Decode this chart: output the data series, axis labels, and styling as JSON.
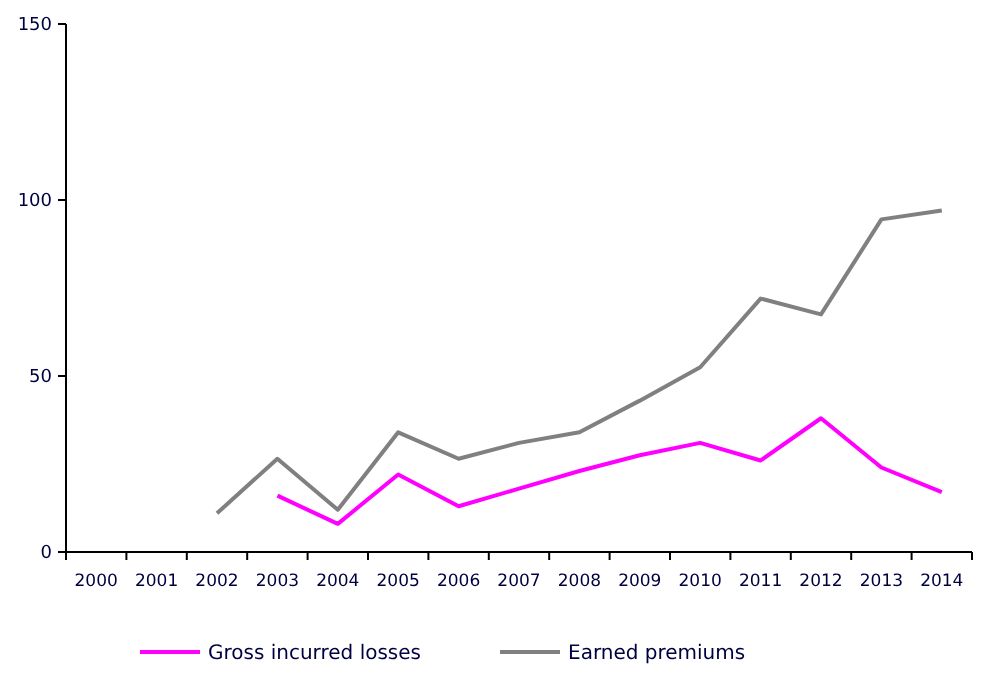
{
  "chart_data": {
    "type": "line",
    "categories": [
      "2000",
      "2001",
      "2002",
      "2003",
      "2004",
      "2005",
      "2006",
      "2007",
      "2008",
      "2009",
      "2010",
      "2011",
      "2012",
      "2013",
      "2014"
    ],
    "series": [
      {
        "name": "Gross incurred losses",
        "color": "#ff00ff",
        "values": [
          null,
          null,
          null,
          16,
          8,
          22,
          13,
          18,
          23,
          27.5,
          31,
          26,
          38,
          24,
          17
        ]
      },
      {
        "name": "Earned premiums",
        "color": "#808080",
        "values": [
          null,
          null,
          11,
          26.5,
          12,
          34,
          26.5,
          31,
          34,
          43,
          52.5,
          72,
          67.5,
          94.5,
          97
        ]
      }
    ],
    "ylim": [
      0,
      150
    ],
    "yticks": [
      0,
      50,
      100,
      150
    ],
    "grid": false,
    "legend": "bottom",
    "marker": "none",
    "line_style": "solid"
  }
}
